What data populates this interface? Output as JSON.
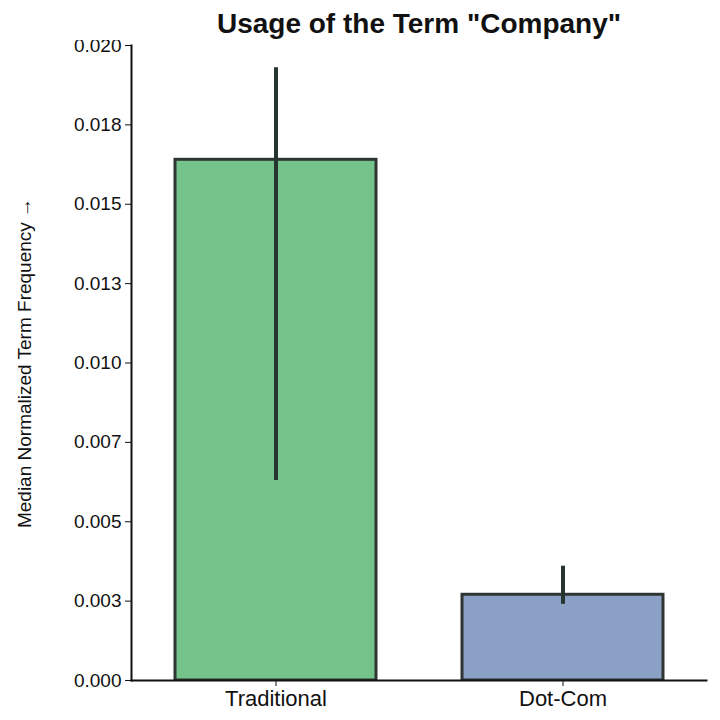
{
  "chart_data": {
    "type": "bar",
    "title": "Usage of the Term \"Company\"",
    "y_label": "Median Normalized Term Frequency",
    "categories": [
      "Traditional",
      "Dot-Com"
    ],
    "values": [
      0.0164,
      0.0027
    ],
    "error_low": [
      0.0063,
      0.0024
    ],
    "error_high": [
      0.0193,
      0.0036
    ],
    "colors": [
      "#74c38a",
      "#8aa0c4"
    ],
    "ylim": [
      0,
      0.02
    ],
    "yticks": [
      {
        "value": 0,
        "label": "0.000"
      },
      {
        "value": 0.0025,
        "label": "0.003"
      },
      0.005,
      {
        "value": 0.0075,
        "label": "0.007"
      },
      {
        "value": 0.01,
        "label": "0.010"
      },
      {
        "value": 0.0125,
        "label": "0.013"
      },
      0.015,
      {
        "value": 0.0175,
        "label": "0.018"
      },
      {
        "value": 0.02,
        "label": "0.020"
      }
    ],
    "grid": false
  }
}
